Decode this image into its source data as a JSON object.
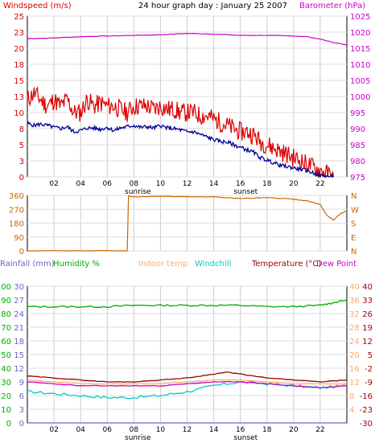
{
  "title": "24 hour graph day : January 25 2007",
  "x_ticks": [
    "02",
    "04",
    "06",
    "08",
    "10",
    "12",
    "14",
    "16",
    "18",
    "20",
    "22"
  ],
  "sunrise_label": "sunrise",
  "sunset_label": "sunset",
  "colors": {
    "windspeed": "#dd0000",
    "windavg": "#000099",
    "barometer": "#cc00cc",
    "winddir": "#cc6600",
    "rainfall": "#6666cc",
    "humidity": "#00aa00",
    "indoor": "#ffaa66",
    "windchill": "#00cccc",
    "temperature": "#990000",
    "dewpoint": "#cc00cc"
  },
  "chart_data": [
    {
      "type": "line",
      "name": "wind-barometer",
      "left_axis_label": "Windspeed (m/s)",
      "right_axis_label": "Barometer (hPa)",
      "left_ticks": [
        "0",
        "3",
        "5",
        "8",
        "10",
        "13",
        "15",
        "18",
        "20",
        "23",
        "25"
      ],
      "right_ticks": [
        "975",
        "980",
        "985",
        "990",
        "995",
        "1000",
        "1005",
        "1010",
        "1015",
        "1020",
        "1025"
      ],
      "left_range": [
        0,
        25
      ],
      "right_range": [
        975,
        1025
      ],
      "x_range": [
        0,
        24
      ],
      "series": [
        {
          "role": "gust",
          "axis": "left",
          "x": [
            0,
            0.5,
            1,
            1.5,
            2,
            2.5,
            3,
            3.5,
            4,
            4.5,
            5,
            5.5,
            6,
            6.5,
            7,
            7.5,
            8,
            8.5,
            9,
            9.5,
            10,
            10.5,
            11,
            11.5,
            12,
            12.5,
            13,
            13.5,
            14,
            14.5,
            15,
            15.5,
            16,
            16.5,
            17,
            17.5,
            18,
            18.5,
            19,
            19.5,
            20,
            20.5,
            21,
            21.5,
            22,
            22.5,
            23
          ],
          "y": [
            12,
            13,
            12,
            11,
            12,
            11,
            12,
            10,
            10,
            12,
            11,
            11.5,
            11,
            11,
            10.5,
            10,
            11,
            11,
            11,
            10.5,
            11,
            10.5,
            10.5,
            10,
            10,
            10,
            9.5,
            9.5,
            9,
            8.5,
            8,
            7.5,
            7,
            7,
            6.5,
            5.5,
            5,
            4.5,
            4,
            3.5,
            3,
            2.5,
            2,
            1.5,
            1,
            0.5,
            0
          ]
        },
        {
          "role": "average",
          "axis": "left",
          "x": [
            0,
            0.5,
            1,
            1.5,
            2,
            2.5,
            3,
            3.5,
            4,
            4.5,
            5,
            5.5,
            6,
            6.5,
            7,
            7.5,
            8,
            8.5,
            9,
            9.5,
            10,
            10.5,
            11,
            11.5,
            12,
            12.5,
            13,
            13.5,
            14,
            14.5,
            15,
            15.5,
            16,
            16.5,
            17,
            17.5,
            18,
            18.5,
            19,
            19.5,
            20,
            20.5,
            21,
            21.5,
            22,
            22.5,
            23
          ],
          "y": [
            8.3,
            8.0,
            8.2,
            8.0,
            7.7,
            7.5,
            7.8,
            7.0,
            7.2,
            7.6,
            7.6,
            7.4,
            7.7,
            7.2,
            7.6,
            7.8,
            8.0,
            7.7,
            7.8,
            7.6,
            8.0,
            7.6,
            7.5,
            7.3,
            7.0,
            7.0,
            6.6,
            6.2,
            5.8,
            5.5,
            5.4,
            5.0,
            4.6,
            4.2,
            3.8,
            3.0,
            2.6,
            2.2,
            1.8,
            1.6,
            1.4,
            1.2,
            1.0,
            0.6,
            0.2,
            0.1,
            0.1
          ]
        },
        {
          "role": "barometer",
          "axis": "right",
          "x": [
            0,
            2,
            4,
            6,
            8,
            10,
            12,
            14,
            16,
            18,
            20,
            21,
            22,
            23,
            24
          ],
          "y": [
            1018,
            1018.2,
            1018.6,
            1018.8,
            1019,
            1019.2,
            1019.6,
            1019.4,
            1019,
            1019,
            1018.8,
            1018.6,
            1017.8,
            1016.8,
            1016
          ]
        }
      ]
    },
    {
      "type": "line",
      "name": "wind-direction",
      "left_ticks": [
        "0",
        "90",
        "180",
        "270",
        "360"
      ],
      "right_ticks": [
        "N",
        "E",
        "S",
        "W",
        "N"
      ],
      "range": [
        0,
        360
      ],
      "x_range": [
        0,
        24
      ],
      "series": [
        {
          "role": "direction",
          "x": [
            0,
            7.5,
            7.6,
            8,
            10,
            14,
            16,
            18,
            20,
            21,
            22,
            22.5,
            23,
            23.5,
            24
          ],
          "y": [
            0,
            0,
            355,
            350,
            355,
            350,
            340,
            345,
            335,
            325,
            300,
            230,
            200,
            240,
            260
          ]
        }
      ]
    },
    {
      "type": "line",
      "name": "temp-humidity",
      "legend": [
        "Rainfall (mm)",
        "Humidity %",
        "Indoor temp",
        "Windchill",
        "Temperature (°C)",
        "Dew Point"
      ],
      "rain_ticks": [
        "0",
        "3",
        "6",
        "9",
        "12",
        "15",
        "18",
        "21",
        "24",
        "27",
        "30"
      ],
      "humidity_ticks": [
        "0",
        "10",
        "20",
        "30",
        "40",
        "50",
        "60",
        "70",
        "80",
        "90",
        "100"
      ],
      "temp_ticks_right1": [
        "4",
        "8",
        "12",
        "16",
        "20",
        "24",
        "28",
        "32",
        "36",
        "40"
      ],
      "temp_ticks_right2": [
        "-30",
        "-23",
        "-16",
        "-9",
        "-2",
        "5",
        "12",
        "19",
        "26",
        "33",
        "40"
      ],
      "temp_range": [
        -30,
        40
      ],
      "humidity_range": [
        0,
        100
      ],
      "x_range": [
        0,
        24
      ],
      "series": [
        {
          "role": "humidity",
          "axis": "humidity",
          "x": [
            0,
            2,
            4,
            6,
            8,
            10,
            12,
            14,
            16,
            18,
            20,
            22,
            23,
            24
          ],
          "y": [
            85,
            85,
            85,
            85,
            86,
            86,
            86,
            86,
            86,
            85,
            85,
            86,
            88,
            90
          ]
        },
        {
          "role": "temperature",
          "axis": "temp",
          "x": [
            0,
            2,
            4,
            6,
            8,
            10,
            12,
            14,
            15,
            16,
            18,
            20,
            22,
            24
          ],
          "y": [
            -6,
            -7,
            -8,
            -9,
            -9,
            -8,
            -7,
            -5,
            -4,
            -5,
            -7,
            -8,
            -9,
            -8
          ]
        },
        {
          "role": "indoor",
          "axis": "temp",
          "x": [
            0,
            2,
            4,
            6,
            8,
            10,
            12,
            14,
            16,
            18,
            20,
            22,
            24
          ],
          "y": [
            -8,
            -9,
            -10,
            -10,
            -10,
            -10,
            -9,
            -8,
            -8,
            -9,
            -10,
            -10,
            -10
          ]
        },
        {
          "role": "dewpoint",
          "axis": "temp",
          "x": [
            0,
            2,
            4,
            6,
            8,
            10,
            12,
            14,
            16,
            18,
            20,
            22,
            24
          ],
          "y": [
            -9,
            -10,
            -11,
            -11,
            -11,
            -11,
            -10,
            -9,
            -9,
            -10,
            -11,
            -12,
            -11
          ]
        },
        {
          "role": "windchill",
          "axis": "temp",
          "x": [
            0,
            2,
            4,
            6,
            8,
            10,
            12,
            14,
            16,
            18,
            20,
            22,
            24
          ],
          "y": [
            -14,
            -15,
            -16,
            -17,
            -17,
            -16,
            -14,
            -11,
            -9,
            -10,
            -11,
            -12,
            -11
          ]
        },
        {
          "role": "rain",
          "axis": "rain",
          "x": [
            0,
            24
          ],
          "y": [
            0,
            0
          ]
        }
      ]
    }
  ]
}
